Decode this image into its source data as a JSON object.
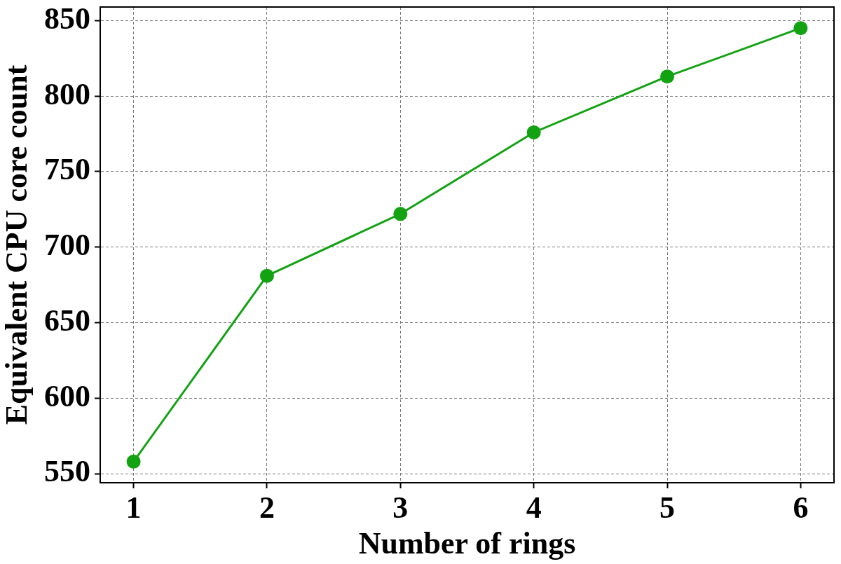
{
  "chart_data": {
    "type": "line",
    "xlabel": "Number of rings",
    "ylabel": "Equivalent CPU core count",
    "x": [
      1,
      2,
      3,
      4,
      5,
      6
    ],
    "values": [
      558,
      681,
      722,
      776,
      813,
      845
    ],
    "color": "#12a212",
    "xlim": [
      0.75,
      6.25
    ],
    "ylim": [
      544,
      859
    ],
    "xticks": [
      1,
      2,
      3,
      4,
      5,
      6
    ],
    "yticks": [
      550,
      600,
      650,
      700,
      750,
      800,
      850
    ],
    "grid": true,
    "marker": "circle",
    "line_style": "solid"
  }
}
